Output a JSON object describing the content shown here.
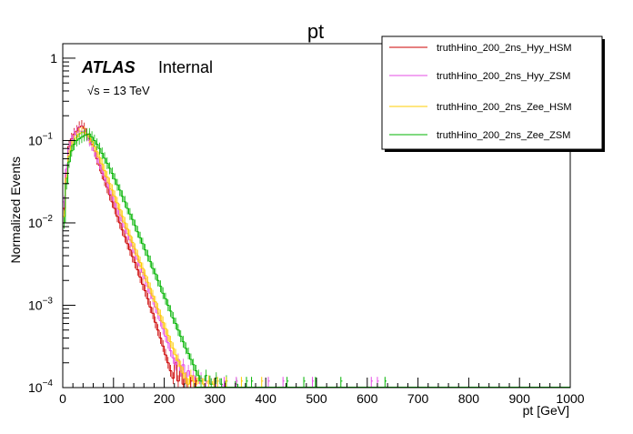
{
  "chart_data": {
    "type": "line",
    "title": "pt",
    "xlabel": "pt [GeV]",
    "ylabel": "Normalized Events",
    "xlim": [
      0,
      1000
    ],
    "ylim": [
      0.0001,
      1.5
    ],
    "yscale": "log",
    "x_ticks": [
      0,
      100,
      200,
      300,
      400,
      500,
      600,
      700,
      800,
      900,
      1000
    ],
    "x_tick_labels": [
      "0",
      "100",
      "200",
      "300",
      "400",
      "500",
      "600",
      "700",
      "800",
      "900",
      "1000"
    ],
    "y_ticks": [
      0.0001,
      0.001,
      0.01,
      0.1,
      1
    ],
    "y_tick_labels": [
      {
        "base": "10",
        "exp": "−4"
      },
      {
        "base": "10",
        "exp": "−3"
      },
      {
        "base": "10",
        "exp": "−2"
      },
      {
        "base": "10",
        "exp": "−1"
      },
      {
        "base": "1",
        "exp": ""
      }
    ],
    "atlas_label": "ATLAS",
    "atlas_status": "Internal",
    "energy_label": "√s = 13 TeV",
    "legend_position": "top-right",
    "series": [
      {
        "name": "truthHino_200_2ns_Hyy_HSM",
        "color": "#cc0000",
        "bins": [
          [
            0,
            0.015
          ],
          [
            5,
            0.04
          ],
          [
            10,
            0.085
          ],
          [
            15,
            0.105
          ],
          [
            20,
            0.12
          ],
          [
            25,
            0.13
          ],
          [
            30,
            0.145
          ],
          [
            35,
            0.15
          ],
          [
            40,
            0.14
          ],
          [
            45,
            0.12
          ],
          [
            50,
            0.105
          ],
          [
            55,
            0.09
          ],
          [
            60,
            0.075
          ],
          [
            65,
            0.06
          ],
          [
            70,
            0.05
          ],
          [
            75,
            0.04
          ],
          [
            80,
            0.033
          ],
          [
            85,
            0.027
          ],
          [
            90,
            0.022
          ],
          [
            95,
            0.018
          ],
          [
            100,
            0.015
          ],
          [
            105,
            0.012
          ],
          [
            110,
            0.01
          ],
          [
            115,
            0.0082
          ],
          [
            120,
            0.0068
          ],
          [
            125,
            0.0056
          ],
          [
            130,
            0.0047
          ],
          [
            135,
            0.0039
          ],
          [
            140,
            0.0033
          ],
          [
            145,
            0.0027
          ],
          [
            150,
            0.0022
          ],
          [
            155,
            0.0018
          ],
          [
            160,
            0.0015
          ],
          [
            165,
            0.0012
          ],
          [
            170,
            0.00095
          ],
          [
            175,
            0.0008
          ],
          [
            180,
            0.00062
          ],
          [
            185,
            0.0005
          ],
          [
            190,
            0.0004
          ],
          [
            195,
            0.00032
          ],
          [
            200,
            0.00025
          ],
          [
            205,
            0.0002
          ],
          [
            210,
            0.00016
          ],
          [
            215,
            0.00013
          ],
          [
            220,
            0.0002
          ],
          [
            225,
            0.00012
          ],
          [
            230,
            0.00016
          ],
          [
            235,
            0.00011
          ],
          [
            240,
            0.00013
          ]
        ]
      },
      {
        "name": "truthHino_200_2ns_Hyy_ZSM",
        "color": "#e64ce6",
        "bins": [
          [
            0,
            0.018
          ],
          [
            5,
            0.045
          ],
          [
            10,
            0.08
          ],
          [
            15,
            0.1
          ],
          [
            20,
            0.115
          ],
          [
            25,
            0.125
          ],
          [
            30,
            0.13
          ],
          [
            35,
            0.13
          ],
          [
            40,
            0.125
          ],
          [
            45,
            0.115
          ],
          [
            50,
            0.1
          ],
          [
            55,
            0.088
          ],
          [
            60,
            0.075
          ],
          [
            65,
            0.063
          ],
          [
            70,
            0.053
          ],
          [
            75,
            0.044
          ],
          [
            80,
            0.037
          ],
          [
            85,
            0.031
          ],
          [
            90,
            0.026
          ],
          [
            95,
            0.022
          ],
          [
            100,
            0.018
          ],
          [
            105,
            0.015
          ],
          [
            110,
            0.0125
          ],
          [
            115,
            0.0105
          ],
          [
            120,
            0.0088
          ],
          [
            125,
            0.0074
          ],
          [
            130,
            0.0062
          ],
          [
            135,
            0.0052
          ],
          [
            140,
            0.0043
          ],
          [
            145,
            0.0036
          ],
          [
            150,
            0.003
          ],
          [
            155,
            0.0025
          ],
          [
            160,
            0.0021
          ],
          [
            165,
            0.0017
          ],
          [
            170,
            0.0014
          ],
          [
            175,
            0.0012
          ],
          [
            180,
            0.00095
          ],
          [
            185,
            0.0008
          ],
          [
            190,
            0.00065
          ],
          [
            195,
            0.00052
          ],
          [
            200,
            0.00042
          ],
          [
            205,
            0.00035
          ],
          [
            210,
            0.00028
          ],
          [
            215,
            0.00023
          ],
          [
            220,
            0.00019
          ],
          [
            225,
            0.00022
          ],
          [
            230,
            0.00016
          ],
          [
            235,
            0.00019
          ],
          [
            240,
            0.00013
          ],
          [
            245,
            0.00016
          ],
          [
            250,
            0.00012
          ],
          [
            255,
            0.00014
          ],
          [
            260,
            0.00011
          ],
          [
            270,
            0.00013
          ],
          [
            280,
            0.00012
          ],
          [
            290,
            0.00011
          ],
          [
            300,
            0.00012
          ],
          [
            310,
            0.00011
          ]
        ]
      },
      {
        "name": "truthHino_200_2ns_Zee_HSM",
        "color": "#ffcc00",
        "bins": [
          [
            0,
            0.012
          ],
          [
            5,
            0.035
          ],
          [
            10,
            0.065
          ],
          [
            15,
            0.085
          ],
          [
            20,
            0.1
          ],
          [
            25,
            0.11
          ],
          [
            30,
            0.12
          ],
          [
            35,
            0.125
          ],
          [
            40,
            0.125
          ],
          [
            45,
            0.118
          ],
          [
            50,
            0.11
          ],
          [
            55,
            0.098
          ],
          [
            60,
            0.085
          ],
          [
            65,
            0.073
          ],
          [
            70,
            0.062
          ],
          [
            75,
            0.052
          ],
          [
            80,
            0.043
          ],
          [
            85,
            0.036
          ],
          [
            90,
            0.03
          ],
          [
            95,
            0.025
          ],
          [
            100,
            0.021
          ],
          [
            105,
            0.0175
          ],
          [
            110,
            0.0145
          ],
          [
            115,
            0.012
          ],
          [
            120,
            0.01
          ],
          [
            125,
            0.0084
          ],
          [
            130,
            0.007
          ],
          [
            135,
            0.0058
          ],
          [
            140,
            0.0048
          ],
          [
            145,
            0.004
          ],
          [
            150,
            0.0033
          ],
          [
            155,
            0.0028
          ],
          [
            160,
            0.0023
          ],
          [
            165,
            0.0019
          ],
          [
            170,
            0.0016
          ],
          [
            175,
            0.0013
          ],
          [
            180,
            0.0011
          ],
          [
            185,
            0.0009
          ],
          [
            190,
            0.00075
          ],
          [
            195,
            0.00062
          ],
          [
            200,
            0.00052
          ],
          [
            205,
            0.00043
          ],
          [
            210,
            0.00036
          ],
          [
            215,
            0.0003
          ],
          [
            220,
            0.00025
          ],
          [
            225,
            0.00021
          ],
          [
            230,
            0.00018
          ],
          [
            235,
            0.00015
          ],
          [
            240,
            0.00013
          ],
          [
            245,
            0.00011
          ],
          [
            250,
            0.00014
          ],
          [
            255,
            0.00012
          ],
          [
            260,
            0.00011
          ],
          [
            265,
            0.00013
          ],
          [
            275,
            0.00011
          ],
          [
            285,
            0.00012
          ],
          [
            295,
            0.00011
          ]
        ]
      },
      {
        "name": "truthHino_200_2ns_Zee_ZSM",
        "color": "#00b300",
        "bins": [
          [
            0,
            0.01
          ],
          [
            5,
            0.03
          ],
          [
            10,
            0.055
          ],
          [
            15,
            0.075
          ],
          [
            20,
            0.09
          ],
          [
            25,
            0.1
          ],
          [
            30,
            0.105
          ],
          [
            35,
            0.11
          ],
          [
            40,
            0.115
          ],
          [
            45,
            0.118
          ],
          [
            50,
            0.12
          ],
          [
            55,
            0.11
          ],
          [
            60,
            0.1
          ],
          [
            65,
            0.09
          ],
          [
            70,
            0.08
          ],
          [
            75,
            0.07
          ],
          [
            80,
            0.061
          ],
          [
            85,
            0.053
          ],
          [
            90,
            0.046
          ],
          [
            95,
            0.04
          ],
          [
            100,
            0.034
          ],
          [
            105,
            0.029
          ],
          [
            110,
            0.025
          ],
          [
            115,
            0.021
          ],
          [
            120,
            0.018
          ],
          [
            125,
            0.015
          ],
          [
            130,
            0.0128
          ],
          [
            135,
            0.011
          ],
          [
            140,
            0.0093
          ],
          [
            145,
            0.0078
          ],
          [
            150,
            0.0066
          ],
          [
            155,
            0.0056
          ],
          [
            160,
            0.0047
          ],
          [
            165,
            0.004
          ],
          [
            170,
            0.0034
          ],
          [
            175,
            0.0028
          ],
          [
            180,
            0.0024
          ],
          [
            185,
            0.002
          ],
          [
            190,
            0.0017
          ],
          [
            195,
            0.0014
          ],
          [
            200,
            0.0012
          ],
          [
            205,
            0.001
          ],
          [
            210,
            0.00085
          ],
          [
            215,
            0.0007
          ],
          [
            220,
            0.0006
          ],
          [
            225,
            0.0005
          ],
          [
            230,
            0.00042
          ],
          [
            235,
            0.00036
          ],
          [
            240,
            0.0003
          ],
          [
            245,
            0.00026
          ],
          [
            250,
            0.00022
          ],
          [
            255,
            0.00019
          ],
          [
            260,
            0.00016
          ],
          [
            265,
            0.00014
          ],
          [
            270,
            0.00012
          ],
          [
            280,
            0.00014
          ],
          [
            290,
            0.00011
          ],
          [
            300,
            0.00013
          ],
          [
            310,
            0.00011
          ],
          [
            320,
            0.00012
          ],
          [
            340,
            0.00011
          ]
        ]
      }
    ],
    "tail_spikes": [
      {
        "series": 0,
        "x": 252
      },
      {
        "series": 0,
        "x": 262
      },
      {
        "series": 1,
        "x": 318
      },
      {
        "series": 1,
        "x": 342
      },
      {
        "series": 1,
        "x": 405
      },
      {
        "series": 1,
        "x": 434
      },
      {
        "series": 1,
        "x": 492
      },
      {
        "series": 1,
        "x": 608
      },
      {
        "series": 1,
        "x": 620
      },
      {
        "series": 2,
        "x": 305
      },
      {
        "series": 2,
        "x": 322
      },
      {
        "series": 2,
        "x": 352
      },
      {
        "series": 2,
        "x": 392
      },
      {
        "series": 3,
        "x": 362
      },
      {
        "series": 3,
        "x": 372
      },
      {
        "series": 3,
        "x": 442
      },
      {
        "series": 3,
        "x": 475
      },
      {
        "series": 3,
        "x": 498
      },
      {
        "series": 3,
        "x": 548
      },
      {
        "series": 3,
        "x": 635
      }
    ]
  }
}
